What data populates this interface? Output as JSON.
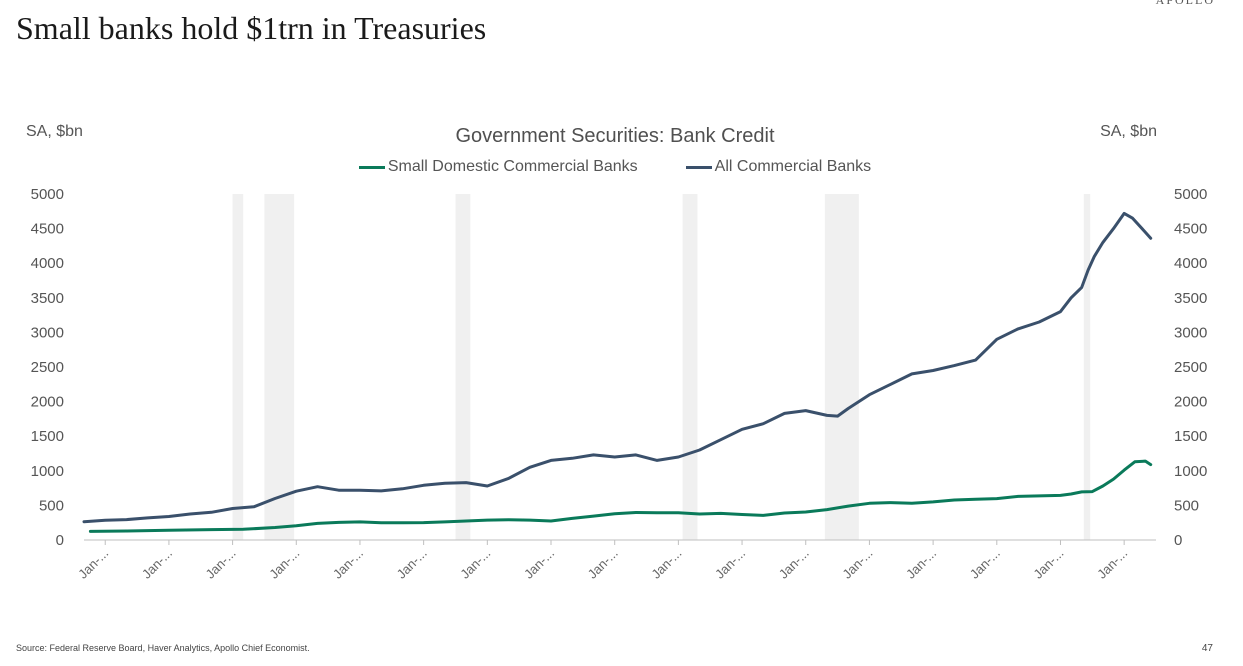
{
  "brand": "APOLLO",
  "slide_title": "Small banks hold $1trn in Treasuries",
  "source": "Source: Federal Reserve Board, Haver Analytics, Apollo Chief Economist.",
  "page_number": "47",
  "chart_data": {
    "type": "line",
    "title": "Government Securities: Bank Credit",
    "ylabel_left": "SA, $bn",
    "ylabel_right": "SA, $bn",
    "ylim": [
      0,
      5000
    ],
    "yticks": [
      0,
      500,
      1000,
      1500,
      2000,
      2500,
      3000,
      3500,
      4000,
      4500,
      5000
    ],
    "xlim": [
      1973.0,
      2023.5
    ],
    "x_tick_positions": [
      1974,
      1977,
      1980,
      1983,
      1986,
      1989,
      1992,
      1995,
      1998,
      2001,
      2004,
      2007,
      2010,
      2013,
      2016,
      2019,
      2022
    ],
    "x_tick_label": "Jan-...",
    "grid": false,
    "legend_position": "top-center",
    "recessions": [
      [
        1980.0,
        1980.5
      ],
      [
        1981.5,
        1982.9
      ],
      [
        1990.5,
        1991.2
      ],
      [
        2001.2,
        2001.9
      ],
      [
        2007.9,
        2009.5
      ],
      [
        2020.1,
        2020.4
      ]
    ],
    "series": [
      {
        "name": "Small Domestic Commercial Banks",
        "color": "#0a7a5a",
        "x": [
          1973.3,
          1975,
          1977,
          1979,
          1980.5,
          1982,
          1983,
          1984,
          1985,
          1986,
          1987,
          1988,
          1989,
          1990,
          1991,
          1992,
          1993,
          1994,
          1995,
          1996,
          1997,
          1998,
          1999,
          2000,
          2001,
          2002,
          2003,
          2004,
          2005,
          2006,
          2007,
          2008,
          2009,
          2010,
          2011,
          2012,
          2013,
          2014,
          2015,
          2016,
          2017,
          2018,
          2019,
          2019.5,
          2020,
          2020.5,
          2021,
          2021.5,
          2022,
          2022.5,
          2023,
          2023.25
        ],
        "values": [
          125,
          130,
          140,
          150,
          155,
          180,
          205,
          240,
          255,
          262,
          250,
          248,
          252,
          262,
          275,
          288,
          293,
          288,
          275,
          312,
          345,
          380,
          398,
          395,
          395,
          375,
          385,
          368,
          355,
          390,
          405,
          440,
          490,
          530,
          540,
          530,
          550,
          578,
          590,
          598,
          630,
          638,
          645,
          665,
          695,
          700,
          780,
          880,
          1010,
          1130,
          1140,
          1090
        ]
      },
      {
        "name": "All Commercial Banks",
        "color": "#3a506b",
        "x": [
          1973.0,
          1974,
          1975,
          1976,
          1977,
          1978,
          1979,
          1980,
          1981,
          1982,
          1983,
          1984,
          1985,
          1986,
          1987,
          1988,
          1989,
          1990,
          1991,
          1992,
          1993,
          1994,
          1995,
          1996,
          1997,
          1998,
          1999,
          2000,
          2001,
          2002,
          2003,
          2004,
          2005,
          2006,
          2007,
          2008,
          2008.5,
          2009,
          2010,
          2011,
          2012,
          2013,
          2014,
          2015,
          2016,
          2017,
          2018,
          2019,
          2019.5,
          2020,
          2020.3,
          2020.6,
          2021,
          2021.5,
          2022,
          2022.4,
          2022.9,
          2023.25
        ],
        "values": [
          265,
          285,
          295,
          320,
          340,
          375,
          400,
          455,
          480,
          600,
          705,
          770,
          720,
          720,
          710,
          740,
          790,
          820,
          830,
          780,
          890,
          1050,
          1150,
          1180,
          1230,
          1200,
          1230,
          1150,
          1200,
          1300,
          1450,
          1600,
          1680,
          1830,
          1870,
          1800,
          1790,
          1900,
          2100,
          2250,
          2400,
          2450,
          2520,
          2600,
          2900,
          3050,
          3150,
          3300,
          3500,
          3650,
          3900,
          4100,
          4300,
          4500,
          4720,
          4650,
          4480,
          4360
        ]
      }
    ]
  }
}
